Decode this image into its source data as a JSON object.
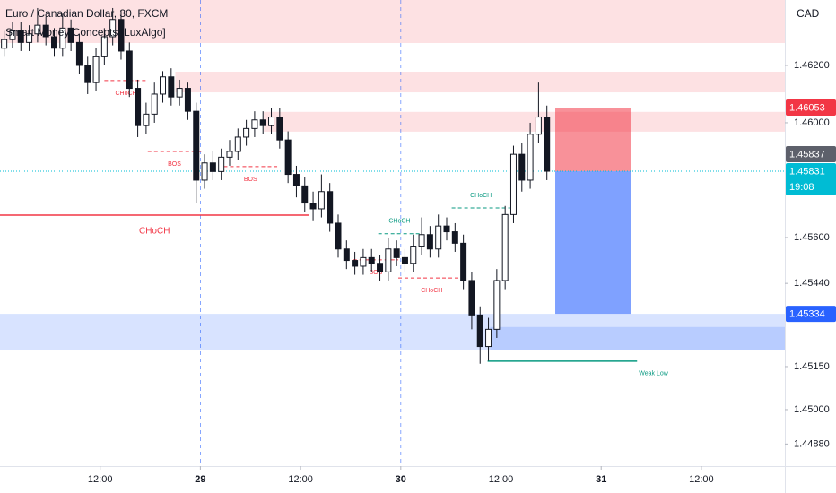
{
  "chart_data": {
    "type": "candlestick",
    "title": "Euro / Canadian Dollar, 30, FXCM",
    "subtitle": "Smart Money Concepts [LuxAlgo]",
    "currency": "CAD",
    "xlim": [
      0,
      94
    ],
    "ylim": [
      1.44803,
      1.46428
    ],
    "xticks": [
      {
        "value": 12,
        "label": "12:00"
      },
      {
        "value": 24,
        "label": "29"
      },
      {
        "value": 36,
        "label": "12:00"
      },
      {
        "value": 48,
        "label": "30"
      },
      {
        "value": 60,
        "label": "12:00"
      },
      {
        "value": 72,
        "label": "31"
      },
      {
        "value": 84,
        "label": "12:00"
      }
    ],
    "yticks": [
      {
        "value": 1.462,
        "label": "1.46200"
      },
      {
        "value": 1.46,
        "label": "1.46000"
      },
      {
        "value": 1.456,
        "label": "1.45600"
      },
      {
        "value": 1.4544,
        "label": "1.45440"
      },
      {
        "value": 1.4515,
        "label": "1.45150"
      },
      {
        "value": 1.45,
        "label": "1.45000"
      },
      {
        "value": 1.4488,
        "label": "1.44880"
      }
    ],
    "up_color": "#ffffff",
    "down_color": "#131722",
    "x": [
      0.5,
      1.5,
      2.5,
      3.5,
      4.5,
      5.5,
      6.5,
      7.5,
      8.5,
      9.5,
      10.5,
      11.5,
      12.5,
      13.5,
      14.5,
      15.5,
      16.5,
      17.5,
      18.5,
      19.5,
      20.5,
      21.5,
      22.5,
      23.5,
      24.5,
      25.5,
      26.5,
      27.5,
      28.5,
      29.5,
      30.5,
      31.5,
      32.5,
      33.5,
      34.5,
      35.5,
      36.5,
      37.5,
      38.5,
      39.5,
      40.5,
      41.5,
      42.5,
      43.5,
      44.5,
      45.5,
      46.5,
      47.5,
      48.5,
      49.5,
      50.5,
      51.5,
      52.5,
      53.5,
      54.5,
      55.5,
      56.5,
      57.5,
      58.5,
      59.5,
      60.5,
      61.5,
      62.5,
      63.5,
      64.5,
      65.5
    ],
    "open": [
      1.4626,
      1.4629,
      1.4632,
      1.4628,
      1.4631,
      1.4634,
      1.463,
      1.4626,
      1.4633,
      1.4628,
      1.462,
      1.4614,
      1.4623,
      1.463,
      1.4636,
      1.4625,
      1.4612,
      1.4599,
      1.4603,
      1.461,
      1.4616,
      1.4609,
      1.4612,
      1.4604,
      1.458,
      1.4586,
      1.4583,
      1.4588,
      1.459,
      1.4595,
      1.4598,
      1.4601,
      1.4599,
      1.4602,
      1.4594,
      1.4582,
      1.4578,
      1.4572,
      1.457,
      1.4576,
      1.4565,
      1.4556,
      1.4552,
      1.455,
      1.4553,
      1.4551,
      1.4548,
      1.4556,
      1.4553,
      1.4551,
      1.4557,
      1.4561,
      1.4556,
      1.4564,
      1.4562,
      1.4558,
      1.4545,
      1.4533,
      1.4522,
      1.4528,
      1.4545,
      1.4568,
      1.4589,
      1.458,
      1.4596,
      1.4602
    ],
    "high": [
      1.4632,
      1.4635,
      1.4635,
      1.4634,
      1.464,
      1.4637,
      1.4633,
      1.4638,
      1.4636,
      1.4631,
      1.4623,
      1.4626,
      1.4633,
      1.464,
      1.4639,
      1.4628,
      1.4615,
      1.4607,
      1.4614,
      1.4618,
      1.4619,
      1.4615,
      1.4614,
      1.4607,
      1.4589,
      1.459,
      1.4591,
      1.4594,
      1.4598,
      1.4601,
      1.4604,
      1.4604,
      1.4605,
      1.4605,
      1.4597,
      1.4585,
      1.4581,
      1.4576,
      1.4582,
      1.4579,
      1.4568,
      1.4559,
      1.4555,
      1.4556,
      1.4556,
      1.4554,
      1.456,
      1.4559,
      1.4556,
      1.4561,
      1.4567,
      1.4564,
      1.4568,
      1.4567,
      1.4565,
      1.4561,
      1.4548,
      1.4536,
      1.4532,
      1.4549,
      1.4571,
      1.4592,
      1.4593,
      1.46,
      1.4614,
      1.4606
    ],
    "low": [
      1.4623,
      1.4626,
      1.4625,
      1.4625,
      1.4628,
      1.4627,
      1.4623,
      1.4623,
      1.4625,
      1.4617,
      1.461,
      1.4611,
      1.462,
      1.4627,
      1.4622,
      1.4609,
      1.4595,
      1.4596,
      1.46,
      1.4607,
      1.4606,
      1.4606,
      1.4601,
      1.4572,
      1.4577,
      1.458,
      1.458,
      1.4585,
      1.4587,
      1.4592,
      1.4595,
      1.4596,
      1.4596,
      1.4591,
      1.4579,
      1.4574,
      1.4569,
      1.4566,
      1.4567,
      1.4562,
      1.4553,
      1.4549,
      1.4547,
      1.4547,
      1.4548,
      1.4545,
      1.4545,
      1.455,
      1.4548,
      1.4548,
      1.4554,
      1.4553,
      1.4553,
      1.4559,
      1.4555,
      1.4542,
      1.4528,
      1.4516,
      1.4517,
      1.4525,
      1.4542,
      1.4565,
      1.4576,
      1.4577,
      1.4593,
      1.458
    ],
    "close": [
      1.4629,
      1.4632,
      1.4628,
      1.4631,
      1.4634,
      1.463,
      1.4626,
      1.4633,
      1.4628,
      1.462,
      1.4614,
      1.4623,
      1.463,
      1.4636,
      1.4625,
      1.4612,
      1.4599,
      1.4603,
      1.461,
      1.4616,
      1.4609,
      1.4612,
      1.4604,
      1.458,
      1.4586,
      1.4583,
      1.4588,
      1.459,
      1.4595,
      1.4598,
      1.4601,
      1.4599,
      1.4602,
      1.4594,
      1.4582,
      1.4578,
      1.4572,
      1.457,
      1.4576,
      1.4565,
      1.4556,
      1.4552,
      1.455,
      1.4553,
      1.4551,
      1.4548,
      1.4556,
      1.4553,
      1.4551,
      1.4557,
      1.4561,
      1.4556,
      1.4564,
      1.4562,
      1.4558,
      1.4545,
      1.4533,
      1.4522,
      1.4528,
      1.4545,
      1.4568,
      1.4589,
      1.458,
      1.4596,
      1.4602,
      1.45831
    ],
    "zones": [
      {
        "x0": 0,
        "x1": 94,
        "top": 1.46428,
        "bottom": 1.46278,
        "color": "rgba(242,54,69,0.15)"
      },
      {
        "x0": 21,
        "x1": 94,
        "top": 1.46178,
        "bottom": 1.46106,
        "color": "rgba(242,54,69,0.15)"
      },
      {
        "x0": 31.6,
        "x1": 94,
        "top": 1.46038,
        "bottom": 1.45969,
        "color": "rgba(242,54,69,0.15)"
      },
      {
        "x0": 0,
        "x1": 94,
        "top": 1.45334,
        "bottom": 1.45209,
        "color": "rgba(41,98,255,0.18)"
      },
      {
        "x0": 58.7,
        "x1": 94,
        "top": 1.45288,
        "bottom": 1.45209,
        "color": "rgba(41,98,255,0.18)"
      }
    ],
    "structures": [
      {
        "label": "CHoCH",
        "x0": 0,
        "x1": 37,
        "price": 1.45678,
        "color": "#f23645",
        "style": "solid"
      },
      {
        "label": "CHoCH",
        "x0": 12.5,
        "x1": 17.7,
        "price": 1.46147,
        "color": "#f23645",
        "style": "dashed"
      },
      {
        "label": "BOS",
        "x0": 17.7,
        "x1": 24.1,
        "price": 1.459,
        "color": "#f23645",
        "style": "dashed"
      },
      {
        "label": "BOS",
        "x0": 26.8,
        "x1": 33.2,
        "price": 1.45847,
        "color": "#f23645",
        "style": "dashed"
      },
      {
        "label": "BOS",
        "x0": 42.3,
        "x1": 47.7,
        "price": 1.45522,
        "color": "#f23645",
        "style": "dashed"
      },
      {
        "label": "CHoCH",
        "x0": 47.7,
        "x1": 55.7,
        "price": 1.45459,
        "color": "#f23645",
        "style": "dashed"
      },
      {
        "label": "CHoCH",
        "x0": 45.3,
        "x1": 50.4,
        "price": 1.45613,
        "color": "#089981",
        "style": "dashed"
      },
      {
        "label": "CHoCH",
        "x0": 54.1,
        "x1": 61.1,
        "price": 1.45703,
        "color": "#089981",
        "style": "dashed"
      }
    ],
    "weak_low": {
      "label": "Weak Low",
      "x0": 58.4,
      "x1": 76.3,
      "price": 1.45169,
      "color": "#089981"
    },
    "position": {
      "x0": 66.5,
      "x1": 75.6,
      "entry": 1.45831,
      "stop": 1.46053,
      "target": 1.45334,
      "stop_color": "rgba(242,54,69,0.55)",
      "target_color": "rgba(41,98,255,0.6)"
    },
    "day_separators": [
      24,
      48
    ],
    "current_price": 1.45831,
    "price_tags": [
      {
        "value": 1.45831,
        "color": "#00bcd4",
        "countdown": "19:08"
      },
      {
        "value": 1.46053,
        "color": "#f23645"
      },
      {
        "value": 1.45837,
        "color": "#5d606b"
      },
      {
        "value": 1.45334,
        "color": "#2962ff"
      }
    ]
  }
}
